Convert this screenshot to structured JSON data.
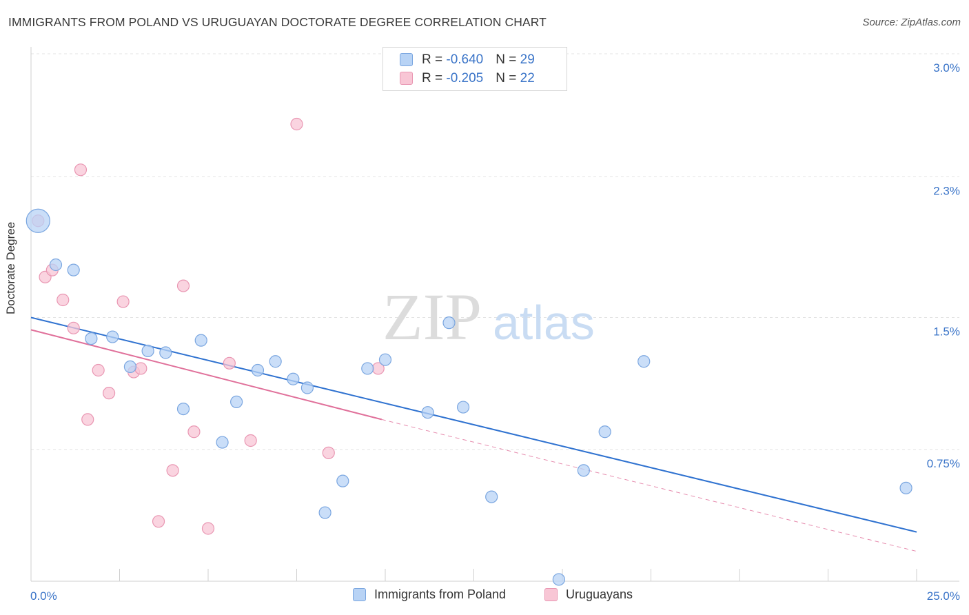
{
  "title": "IMMIGRANTS FROM POLAND VS URUGUAYAN DOCTORATE DEGREE CORRELATION CHART",
  "source": "Source: ZipAtlas.com",
  "watermark": {
    "zip": "ZIP",
    "atlas": "atlas"
  },
  "colors": {
    "blue_fill": "#b8d3f5",
    "blue_stroke": "#7aa6e0",
    "blue_line": "#2f72d0",
    "pink_fill": "#f8c6d5",
    "pink_stroke": "#e996b2",
    "pink_line": "#e0709a",
    "tick_text": "#3a74c8"
  },
  "legend_top": [
    {
      "r_label": "R = ",
      "r_value": "-0.640",
      "n_label": "N = ",
      "n_value": "29"
    },
    {
      "r_label": "R = ",
      "r_value": "-0.205",
      "n_label": "N = ",
      "n_value": "22"
    }
  ],
  "chart_data": {
    "type": "scatter",
    "title": "IMMIGRANTS FROM POLAND VS URUGUAYAN DOCTORATE DEGREE CORRELATION CHART",
    "xlabel": "",
    "ylabel": "Doctorate Degree",
    "xlim": [
      0,
      25
    ],
    "ylim": [
      0,
      3.0
    ],
    "x_tick_labels": [
      "0.0%",
      "25.0%"
    ],
    "y_ticks": [
      0.75,
      1.5,
      2.3,
      3.0
    ],
    "y_tick_labels": [
      "0.75%",
      "1.5%",
      "2.3%",
      "3.0%"
    ],
    "grid": true,
    "legend_position": "bottom",
    "series": [
      {
        "name": "Immigrants from Poland",
        "color": "#b8d3f5",
        "trend": {
          "x": [
            0,
            25
          ],
          "y": [
            1.5,
            0.28
          ]
        },
        "points": [
          {
            "x": 0.2,
            "y": 2.05,
            "size": "large"
          },
          {
            "x": 0.7,
            "y": 1.8
          },
          {
            "x": 1.2,
            "y": 1.77
          },
          {
            "x": 1.7,
            "y": 1.38
          },
          {
            "x": 2.3,
            "y": 1.39
          },
          {
            "x": 2.8,
            "y": 1.22
          },
          {
            "x": 3.3,
            "y": 1.31
          },
          {
            "x": 3.8,
            "y": 1.3
          },
          {
            "x": 4.3,
            "y": 0.98
          },
          {
            "x": 4.8,
            "y": 1.37
          },
          {
            "x": 5.4,
            "y": 0.79
          },
          {
            "x": 5.8,
            "y": 1.02
          },
          {
            "x": 6.4,
            "y": 1.2
          },
          {
            "x": 6.9,
            "y": 1.25
          },
          {
            "x": 7.4,
            "y": 1.15
          },
          {
            "x": 7.8,
            "y": 1.1
          },
          {
            "x": 8.3,
            "y": 0.39
          },
          {
            "x": 8.8,
            "y": 0.57
          },
          {
            "x": 9.5,
            "y": 1.21
          },
          {
            "x": 10.0,
            "y": 1.26
          },
          {
            "x": 11.2,
            "y": 0.96
          },
          {
            "x": 11.8,
            "y": 1.47
          },
          {
            "x": 12.2,
            "y": 0.99
          },
          {
            "x": 13.0,
            "y": 0.48
          },
          {
            "x": 14.9,
            "y": 0.01
          },
          {
            "x": 15.6,
            "y": 0.63
          },
          {
            "x": 16.2,
            "y": 0.85
          },
          {
            "x": 17.3,
            "y": 1.25
          },
          {
            "x": 24.7,
            "y": 0.53
          }
        ]
      },
      {
        "name": "Uruguayans",
        "color": "#f8c6d5",
        "trend": {
          "x": [
            0,
            9.9
          ],
          "y": [
            1.43,
            0.92
          ]
        },
        "trend_extension": {
          "x": [
            9.9,
            25
          ],
          "y": [
            0.92,
            0.17
          ]
        },
        "points": [
          {
            "x": 0.2,
            "y": 2.05
          },
          {
            "x": 0.4,
            "y": 1.73
          },
          {
            "x": 0.6,
            "y": 1.77
          },
          {
            "x": 0.9,
            "y": 1.6
          },
          {
            "x": 1.2,
            "y": 1.44
          },
          {
            "x": 1.4,
            "y": 2.34
          },
          {
            "x": 1.6,
            "y": 0.92
          },
          {
            "x": 1.9,
            "y": 1.2
          },
          {
            "x": 2.2,
            "y": 1.07
          },
          {
            "x": 2.6,
            "y": 1.59
          },
          {
            "x": 2.9,
            "y": 1.19
          },
          {
            "x": 3.1,
            "y": 1.21
          },
          {
            "x": 3.6,
            "y": 0.34
          },
          {
            "x": 4.0,
            "y": 0.63
          },
          {
            "x": 4.3,
            "y": 1.68
          },
          {
            "x": 4.6,
            "y": 0.85
          },
          {
            "x": 5.0,
            "y": 0.3
          },
          {
            "x": 5.6,
            "y": 1.24
          },
          {
            "x": 6.2,
            "y": 0.8
          },
          {
            "x": 7.5,
            "y": 2.6
          },
          {
            "x": 8.4,
            "y": 0.73
          },
          {
            "x": 9.8,
            "y": 1.21
          }
        ]
      }
    ]
  }
}
